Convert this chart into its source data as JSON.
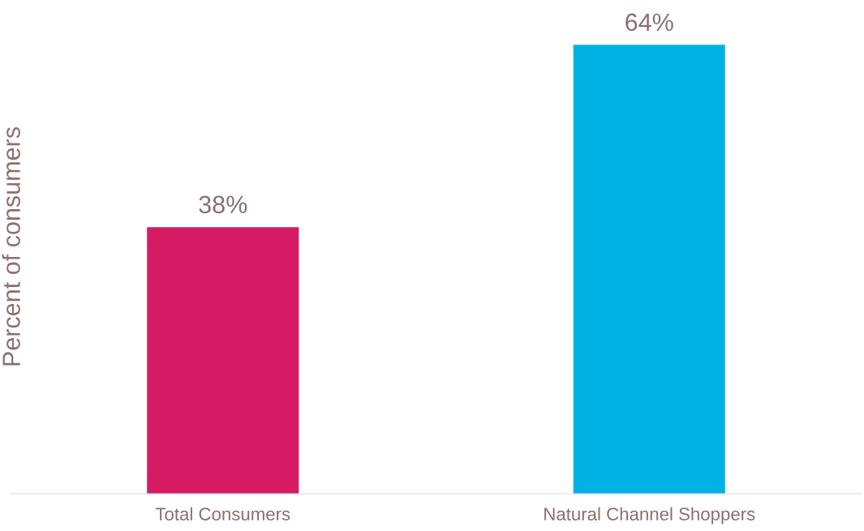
{
  "chart_data": {
    "type": "bar",
    "ylabel": "Percent of consumers",
    "categories": [
      "Total Consumers",
      "Natural Channel Shoppers"
    ],
    "values": [
      38,
      64
    ],
    "colors": [
      "#d61a63",
      "#00b2e3"
    ],
    "value_labels": [
      "38%",
      "64%"
    ],
    "tick_labels": "x",
    "grid": false,
    "legend": false
  }
}
